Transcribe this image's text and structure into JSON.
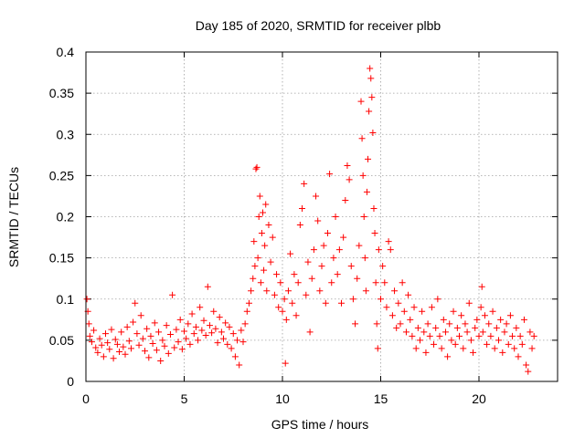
{
  "chart_data": {
    "type": "scatter",
    "title": "Day 185 of 2020, SRMTID for receiver plbb",
    "xlabel": "GPS time / hours",
    "ylabel": "SRMTID / TECUs",
    "xlim": [
      0,
      24
    ],
    "ylim": [
      0,
      0.4
    ],
    "x_ticks": [
      0,
      5,
      10,
      15,
      20
    ],
    "x_tick_labels": [
      "0",
      "5",
      "10",
      "15",
      "20"
    ],
    "y_ticks": [
      0,
      0.05,
      0.1,
      0.15,
      0.2,
      0.25,
      0.3,
      0.35,
      0.4
    ],
    "y_tick_labels": [
      "0",
      "0.05",
      "0.1",
      "0.15",
      "0.2",
      "0.25",
      "0.3",
      "0.35",
      "0.4"
    ],
    "grid": true,
    "marker": "+",
    "color": "#ff0000",
    "series": [
      {
        "name": "SRMTID",
        "points": [
          [
            0.05,
            0.1
          ],
          [
            0.1,
            0.085
          ],
          [
            0.15,
            0.07
          ],
          [
            0.2,
            0.055
          ],
          [
            0.3,
            0.048
          ],
          [
            0.4,
            0.062
          ],
          [
            0.5,
            0.041
          ],
          [
            0.6,
            0.035
          ],
          [
            0.7,
            0.052
          ],
          [
            0.8,
            0.044
          ],
          [
            0.9,
            0.03
          ],
          [
            1.0,
            0.058
          ],
          [
            1.1,
            0.047
          ],
          [
            1.2,
            0.039
          ],
          [
            1.3,
            0.063
          ],
          [
            1.4,
            0.028
          ],
          [
            1.5,
            0.051
          ],
          [
            1.6,
            0.045
          ],
          [
            1.7,
            0.036
          ],
          [
            1.8,
            0.06
          ],
          [
            1.9,
            0.042
          ],
          [
            2.0,
            0.033
          ],
          [
            2.1,
            0.066
          ],
          [
            2.2,
            0.049
          ],
          [
            2.3,
            0.04
          ],
          [
            2.4,
            0.072
          ],
          [
            2.5,
            0.095
          ],
          [
            2.6,
            0.058
          ],
          [
            2.7,
            0.044
          ],
          [
            2.8,
            0.08
          ],
          [
            2.9,
            0.052
          ],
          [
            3.0,
            0.037
          ],
          [
            3.1,
            0.064
          ],
          [
            3.2,
            0.029
          ],
          [
            3.3,
            0.055
          ],
          [
            3.4,
            0.046
          ],
          [
            3.5,
            0.071
          ],
          [
            3.6,
            0.038
          ],
          [
            3.7,
            0.06
          ],
          [
            3.8,
            0.025
          ],
          [
            3.9,
            0.05
          ],
          [
            4.0,
            0.043
          ],
          [
            4.1,
            0.068
          ],
          [
            4.2,
            0.034
          ],
          [
            4.3,
            0.057
          ],
          [
            4.4,
            0.105
          ],
          [
            4.5,
            0.041
          ],
          [
            4.6,
            0.063
          ],
          [
            4.7,
            0.048
          ],
          [
            4.8,
            0.075
          ],
          [
            4.9,
            0.039
          ],
          [
            5.0,
            0.061
          ],
          [
            5.1,
            0.052
          ],
          [
            5.2,
            0.07
          ],
          [
            5.3,
            0.045
          ],
          [
            5.4,
            0.082
          ],
          [
            5.5,
            0.058
          ],
          [
            5.6,
            0.066
          ],
          [
            5.7,
            0.05
          ],
          [
            5.8,
            0.09
          ],
          [
            5.9,
            0.062
          ],
          [
            6.0,
            0.074
          ],
          [
            6.1,
            0.056
          ],
          [
            6.2,
            0.115
          ],
          [
            6.3,
            0.068
          ],
          [
            6.4,
            0.059
          ],
          [
            6.5,
            0.085
          ],
          [
            6.6,
            0.064
          ],
          [
            6.7,
            0.047
          ],
          [
            6.8,
            0.078
          ],
          [
            6.9,
            0.06
          ],
          [
            7.0,
            0.052
          ],
          [
            7.1,
            0.071
          ],
          [
            7.2,
            0.045
          ],
          [
            7.3,
            0.066
          ],
          [
            7.4,
            0.04
          ],
          [
            7.5,
            0.058
          ],
          [
            7.6,
            0.03
          ],
          [
            7.7,
            0.05
          ],
          [
            7.8,
            0.02
          ],
          [
            7.9,
            0.062
          ],
          [
            8.0,
            0.048
          ],
          [
            8.1,
            0.07
          ],
          [
            8.2,
            0.085
          ],
          [
            8.3,
            0.095
          ],
          [
            8.4,
            0.11
          ],
          [
            8.5,
            0.125
          ],
          [
            8.55,
            0.17
          ],
          [
            8.6,
            0.14
          ],
          [
            8.65,
            0.258
          ],
          [
            8.7,
            0.26
          ],
          [
            8.75,
            0.15
          ],
          [
            8.8,
            0.2
          ],
          [
            8.85,
            0.225
          ],
          [
            8.9,
            0.12
          ],
          [
            8.95,
            0.18
          ],
          [
            9.0,
            0.205
          ],
          [
            9.05,
            0.135
          ],
          [
            9.1,
            0.165
          ],
          [
            9.15,
            0.215
          ],
          [
            9.2,
            0.11
          ],
          [
            9.3,
            0.19
          ],
          [
            9.4,
            0.145
          ],
          [
            9.5,
            0.175
          ],
          [
            9.6,
            0.105
          ],
          [
            9.7,
            0.13
          ],
          [
            9.8,
            0.09
          ],
          [
            9.9,
            0.12
          ],
          [
            10.0,
            0.085
          ],
          [
            10.1,
            0.1
          ],
          [
            10.15,
            0.022
          ],
          [
            10.2,
            0.075
          ],
          [
            10.3,
            0.11
          ],
          [
            10.4,
            0.155
          ],
          [
            10.5,
            0.095
          ],
          [
            10.6,
            0.13
          ],
          [
            10.7,
            0.08
          ],
          [
            10.8,
            0.12
          ],
          [
            10.9,
            0.19
          ],
          [
            11.0,
            0.21
          ],
          [
            11.1,
            0.24
          ],
          [
            11.2,
            0.105
          ],
          [
            11.3,
            0.145
          ],
          [
            11.4,
            0.06
          ],
          [
            11.5,
            0.125
          ],
          [
            11.6,
            0.16
          ],
          [
            11.7,
            0.225
          ],
          [
            11.8,
            0.195
          ],
          [
            11.9,
            0.11
          ],
          [
            12.0,
            0.14
          ],
          [
            12.1,
            0.165
          ],
          [
            12.2,
            0.095
          ],
          [
            12.3,
            0.18
          ],
          [
            12.4,
            0.252
          ],
          [
            12.5,
            0.12
          ],
          [
            12.6,
            0.15
          ],
          [
            12.7,
            0.2
          ],
          [
            12.8,
            0.13
          ],
          [
            12.9,
            0.16
          ],
          [
            13.0,
            0.095
          ],
          [
            13.1,
            0.175
          ],
          [
            13.2,
            0.22
          ],
          [
            13.3,
            0.262
          ],
          [
            13.4,
            0.245
          ],
          [
            13.5,
            0.14
          ],
          [
            13.6,
            0.1
          ],
          [
            13.7,
            0.07
          ],
          [
            13.8,
            0.125
          ],
          [
            13.9,
            0.165
          ],
          [
            14.0,
            0.34
          ],
          [
            14.05,
            0.295
          ],
          [
            14.1,
            0.25
          ],
          [
            14.15,
            0.2
          ],
          [
            14.2,
            0.15
          ],
          [
            14.25,
            0.11
          ],
          [
            14.3,
            0.23
          ],
          [
            14.35,
            0.27
          ],
          [
            14.4,
            0.328
          ],
          [
            14.45,
            0.38
          ],
          [
            14.5,
            0.368
          ],
          [
            14.55,
            0.345
          ],
          [
            14.6,
            0.302
          ],
          [
            14.65,
            0.21
          ],
          [
            14.7,
            0.18
          ],
          [
            14.75,
            0.12
          ],
          [
            14.8,
            0.07
          ],
          [
            14.85,
            0.04
          ],
          [
            14.9,
            0.16
          ],
          [
            15.0,
            0.1
          ],
          [
            15.1,
            0.14
          ],
          [
            15.2,
            0.12
          ],
          [
            15.3,
            0.09
          ],
          [
            15.4,
            0.17
          ],
          [
            15.5,
            0.16
          ],
          [
            15.6,
            0.08
          ],
          [
            15.7,
            0.11
          ],
          [
            15.8,
            0.065
          ],
          [
            15.9,
            0.095
          ],
          [
            16.0,
            0.07
          ],
          [
            16.1,
            0.12
          ],
          [
            16.2,
            0.085
          ],
          [
            16.3,
            0.06
          ],
          [
            16.4,
            0.105
          ],
          [
            16.5,
            0.075
          ],
          [
            16.6,
            0.055
          ],
          [
            16.7,
            0.09
          ],
          [
            16.8,
            0.04
          ],
          [
            16.9,
            0.065
          ],
          [
            17.0,
            0.05
          ],
          [
            17.1,
            0.085
          ],
          [
            17.2,
            0.06
          ],
          [
            17.3,
            0.035
          ],
          [
            17.4,
            0.07
          ],
          [
            17.5,
            0.055
          ],
          [
            17.6,
            0.09
          ],
          [
            17.7,
            0.045
          ],
          [
            17.8,
            0.065
          ],
          [
            17.9,
            0.1
          ],
          [
            18.0,
            0.055
          ],
          [
            18.1,
            0.04
          ],
          [
            18.2,
            0.075
          ],
          [
            18.3,
            0.06
          ],
          [
            18.4,
            0.03
          ],
          [
            18.5,
            0.07
          ],
          [
            18.6,
            0.05
          ],
          [
            18.7,
            0.085
          ],
          [
            18.8,
            0.045
          ],
          [
            18.9,
            0.065
          ],
          [
            19.0,
            0.055
          ],
          [
            19.1,
            0.08
          ],
          [
            19.2,
            0.04
          ],
          [
            19.3,
            0.07
          ],
          [
            19.4,
            0.06
          ],
          [
            19.5,
            0.095
          ],
          [
            19.6,
            0.05
          ],
          [
            19.7,
            0.035
          ],
          [
            19.8,
            0.065
          ],
          [
            19.9,
            0.075
          ],
          [
            20.0,
            0.055
          ],
          [
            20.1,
            0.09
          ],
          [
            20.15,
            0.115
          ],
          [
            20.2,
            0.06
          ],
          [
            20.3,
            0.08
          ],
          [
            20.4,
            0.045
          ],
          [
            20.5,
            0.07
          ],
          [
            20.6,
            0.055
          ],
          [
            20.7,
            0.085
          ],
          [
            20.8,
            0.04
          ],
          [
            20.9,
            0.065
          ],
          [
            21.0,
            0.05
          ],
          [
            21.1,
            0.075
          ],
          [
            21.2,
            0.035
          ],
          [
            21.3,
            0.06
          ],
          [
            21.4,
            0.07
          ],
          [
            21.5,
            0.045
          ],
          [
            21.6,
            0.08
          ],
          [
            21.7,
            0.055
          ],
          [
            21.8,
            0.04
          ],
          [
            21.9,
            0.065
          ],
          [
            22.0,
            0.03
          ],
          [
            22.1,
            0.055
          ],
          [
            22.2,
            0.045
          ],
          [
            22.3,
            0.075
          ],
          [
            22.4,
            0.02
          ],
          [
            22.5,
            0.012
          ],
          [
            22.6,
            0.06
          ],
          [
            22.7,
            0.04
          ],
          [
            22.8,
            0.055
          ]
        ]
      }
    ]
  }
}
